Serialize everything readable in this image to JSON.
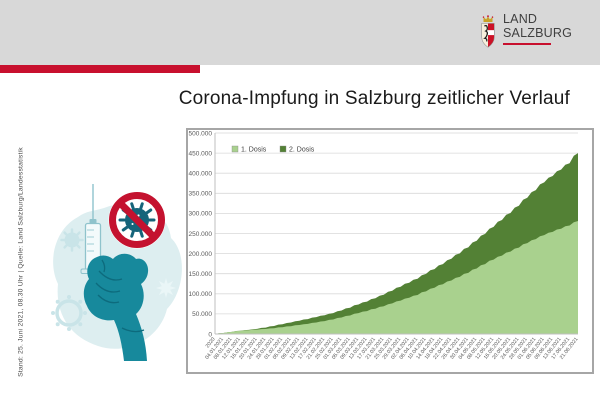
{
  "header": {
    "logo_line1": "LAND",
    "logo_line2": "SALZBURG",
    "banner_color": "#d8d8d8",
    "accent_red": "#c8102e"
  },
  "title": "Corona-Impfung in Salzburg zeitlicher Verlauf",
  "source_note": "Stand: 25. Juni 2021, 08.30 Uhr | Quelle: Land Salzburg/Landesstatistik",
  "illustration": {
    "theme": "hand holding vaccine syringe with crossed-out virus sign",
    "teal": "#17899c",
    "dark_teal": "#15647a",
    "faint_teal": "#c9e4e8",
    "blob": "#ddeef0",
    "sign_red": "#c4122f"
  },
  "chart_data": {
    "type": "area",
    "stacked": true,
    "title": "",
    "xlabel": "",
    "ylabel": "",
    "grid": true,
    "legend_position": "top-left",
    "ylim": [
      0,
      500000
    ],
    "ytick_step": 50000,
    "ytick_labels": [
      "0",
      "50.000",
      "100.000",
      "150.000",
      "200.000",
      "250.000",
      "300.000",
      "350.000",
      "400.000",
      "450.000",
      "500.000"
    ],
    "grid_color": "#d9d9d9",
    "axis_color": "#bfbfbf",
    "text_color": "#595959",
    "categories": [
      "2020",
      "04.01.2021",
      "08.01.2021",
      "12.01.2021",
      "16.01.2021",
      "20.01.2021",
      "24.01.2021",
      "28.01.2021",
      "01.02.2021",
      "05.02.2021",
      "09.02.2021",
      "13.02.2021",
      "17.02.2021",
      "21.02.2021",
      "25.02.2021",
      "01.03.2021",
      "05.03.2021",
      "09.03.2021",
      "13.03.2021",
      "17.03.2021",
      "21.03.2021",
      "25.03.2021",
      "29.03.2021",
      "02.04.2021",
      "06.04.2021",
      "10.04.2021",
      "14.04.2021",
      "18.04.2021",
      "22.04.2021",
      "26.04.2021",
      "30.04.2021",
      "04.05.2021",
      "08.05.2021",
      "12.05.2021",
      "16.05.2021",
      "20.05.2021",
      "24.05.2021",
      "28.05.2021",
      "01.06.2021",
      "05.06.2021",
      "09.06.2021",
      "13.06.2021",
      "17.06.2021",
      "21.06.2021"
    ],
    "series": [
      {
        "name": "1. Dosis",
        "color": "#a9d18e",
        "values": [
          300,
          2500,
          5200,
          7800,
          9500,
          11000,
          12500,
          14500,
          17000,
          19500,
          22500,
          25000,
          28500,
          32000,
          36000,
          41000,
          46000,
          52000,
          57000,
          63000,
          69000,
          76000,
          83000,
          90000,
          97000,
          106000,
          115000,
          124000,
          133000,
          142000,
          152000,
          163000,
          174000,
          185000,
          195000,
          205000,
          215000,
          226000,
          236000,
          246000,
          254000,
          262000,
          270000,
          281000
        ]
      },
      {
        "name": "2. Dosis",
        "color": "#538135",
        "values": [
          0,
          0,
          100,
          300,
          700,
          1600,
          3500,
          5500,
          7500,
          9000,
          10500,
          12000,
          13500,
          14500,
          16000,
          17500,
          19500,
          21500,
          23500,
          26000,
          28500,
          31500,
          34500,
          37500,
          40500,
          43500,
          46500,
          50000,
          54000,
          58500,
          63500,
          69000,
          75000,
          81500,
          88500,
          96000,
          104000,
          113000,
          122000,
          131000,
          139000,
          147000,
          155000,
          169000
        ]
      }
    ]
  }
}
